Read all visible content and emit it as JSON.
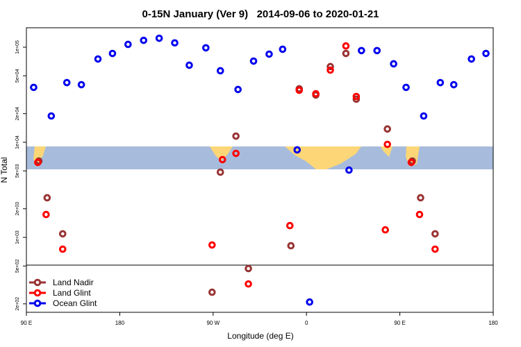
{
  "chart_data": {
    "type": "scatter",
    "title": "0-15N January (Ver 9)   2014-09-06 to 2020-01-21",
    "x_label": "Longitude (deg E)",
    "y_label": "N Total",
    "log_y": true,
    "legend": "bottom-left",
    "xlim": [
      90,
      540
    ],
    "ylim": [
      163,
      160000
    ],
    "xticks": [
      {
        "value": 90,
        "label": "90 E"
      },
      {
        "value": 180,
        "label": "180"
      },
      {
        "value": 270,
        "label": "90 W"
      },
      {
        "value": 360,
        "label": "0"
      },
      {
        "value": 450,
        "label": "90 E"
      },
      {
        "value": 540,
        "label": "180"
      }
    ],
    "yticks": [
      {
        "value": 200,
        "label": "2e+02"
      },
      {
        "value": 500,
        "label": "5e+02"
      },
      {
        "value": 1000,
        "label": "1e+03"
      },
      {
        "value": 2000,
        "label": "2e+03"
      },
      {
        "value": 5000,
        "label": "5e+03"
      },
      {
        "value": 10000,
        "label": "1e+04"
      },
      {
        "value": 20000,
        "label": "2e+04"
      },
      {
        "value": 50000,
        "label": "5e+04"
      },
      {
        "value": 100000,
        "label": "1e+05"
      }
    ],
    "series": [
      {
        "name": "Land Nadir",
        "color": "#993333",
        "x": [
          102,
          110,
          125,
          269,
          277,
          292,
          304,
          345,
          353,
          369,
          383,
          398,
          408,
          438,
          462,
          470,
          484
        ],
        "values": [
          6350,
          2610,
          1090,
          265,
          4850,
          11600,
          470,
          817,
          36500,
          31400,
          62500,
          85900,
          28400,
          13800,
          6350,
          2610,
          1090
        ]
      },
      {
        "name": "Land Glint",
        "color": "#ff0000",
        "x": [
          101,
          109,
          125,
          269,
          279,
          292,
          304,
          344,
          353,
          369,
          383,
          398,
          408,
          436,
          438,
          461,
          469,
          484
        ],
        "values": [
          6140,
          1740,
          752,
          832,
          6570,
          7640,
          324,
          1330,
          35200,
          32400,
          57400,
          103000,
          30300,
          1200,
          9510,
          6140,
          1740,
          752
        ]
      },
      {
        "name": "Ocean Glint",
        "color": "#0000ee",
        "x": [
          97,
          114,
          129,
          143,
          159,
          173,
          188,
          203,
          218,
          233,
          247,
          263,
          277,
          294,
          309,
          324,
          337,
          351,
          363,
          401,
          413,
          428,
          444,
          456,
          473,
          489,
          502,
          519,
          533
        ],
        "values": [
          37800,
          18900,
          42400,
          40300,
          75100,
          85900,
          107000,
          118000,
          124000,
          111000,
          64600,
          98400,
          56500,
          35900,
          71400,
          84500,
          95100,
          8320,
          209,
          5100,
          92000,
          92000,
          66800,
          37800,
          18900,
          42400,
          40300,
          75100,
          85900
        ]
      }
    ]
  }
}
